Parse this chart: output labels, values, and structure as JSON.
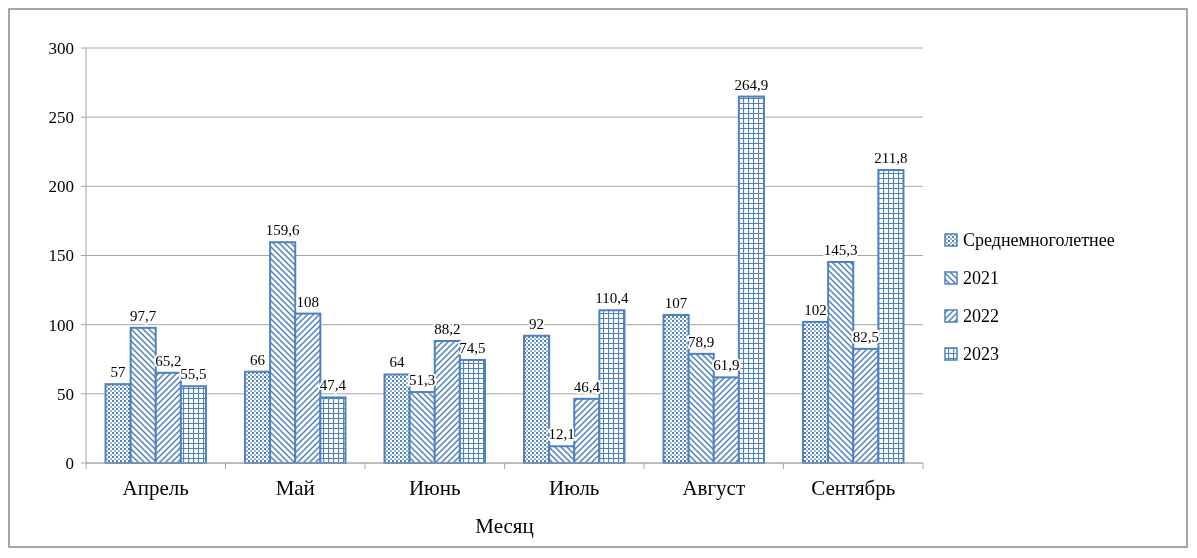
{
  "chart_data": {
    "type": "bar",
    "xlabel": "Месяц",
    "categories": [
      "Апрель",
      "Май",
      "Июнь",
      "Июль",
      "Август",
      "Сентябрь"
    ],
    "series": [
      {
        "name": "Среднемноголетнее",
        "color": "#4f81bd",
        "values": [
          57,
          66,
          64,
          92,
          107,
          102
        ],
        "value_labels": [
          "57",
          "66",
          "64",
          "92",
          "107",
          "102"
        ]
      },
      {
        "name": "2021",
        "color": "#4f81bd",
        "values": [
          97.7,
          159.6,
          51.3,
          12.1,
          78.9,
          145.3
        ],
        "value_labels": [
          "97,7",
          "159,6",
          "51,3",
          "12,1",
          "78,9",
          "145,3"
        ]
      },
      {
        "name": "2022",
        "color": "#4f81bd",
        "values": [
          65.2,
          108,
          88.2,
          46.4,
          61.9,
          82.5
        ],
        "value_labels": [
          "65,2",
          "108",
          "88,2",
          "46,4",
          "61,9",
          "82,5"
        ]
      },
      {
        "name": "2023",
        "color": "#4f81bd",
        "values": [
          55.5,
          47.4,
          74.5,
          110.4,
          264.9,
          211.8
        ],
        "value_labels": [
          "55,5",
          "47,4",
          "74,5",
          "110,4",
          "264,9",
          "211,8"
        ]
      }
    ],
    "ylim": [
      0,
      300
    ],
    "yticks": [
      0,
      50,
      100,
      150,
      200,
      250,
      300
    ],
    "grid": "y",
    "legend": "right"
  }
}
